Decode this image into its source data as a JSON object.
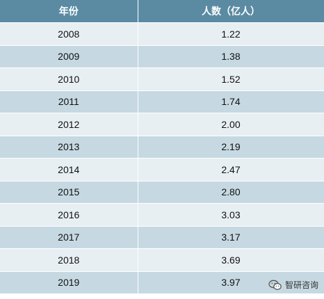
{
  "table": {
    "headers": [
      "年份",
      "人数（亿人）"
    ],
    "rows": [
      [
        "2008",
        "1.22"
      ],
      [
        "2009",
        "1.38"
      ],
      [
        "2010",
        "1.52"
      ],
      [
        "2011",
        "1.74"
      ],
      [
        "2012",
        "2.00"
      ],
      [
        "2013",
        "2.19"
      ],
      [
        "2014",
        "2.47"
      ],
      [
        "2015",
        "2.80"
      ],
      [
        "2016",
        "3.03"
      ],
      [
        "2017",
        "3.17"
      ],
      [
        "2018",
        "3.69"
      ],
      [
        "2019",
        "3.97"
      ]
    ]
  },
  "watermark": {
    "text": "智研咨询",
    "icon": "wechat-icon"
  },
  "colors": {
    "header_bg": "#5a8ba3",
    "row_light": "#e8eff3",
    "row_dark": "#c6d9e2"
  }
}
